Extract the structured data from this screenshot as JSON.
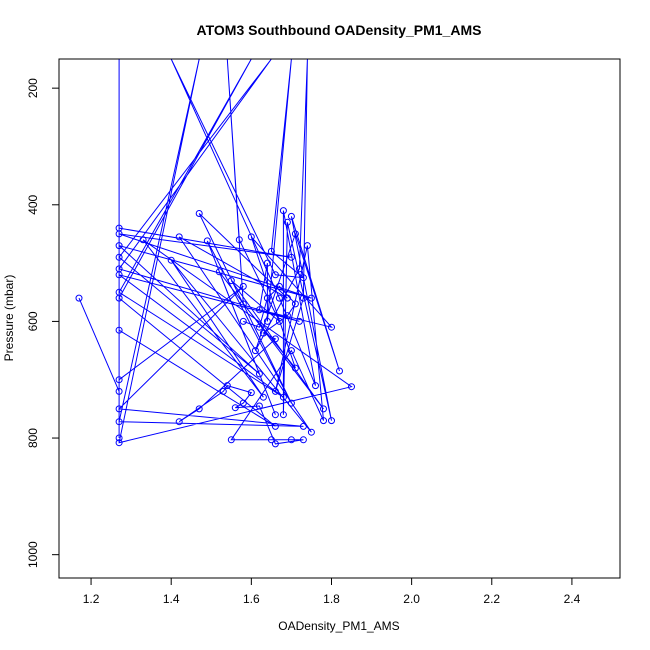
{
  "chart_data": {
    "type": "line",
    "title": "ATOM3 Southbound OADensity_PM1_AMS",
    "xlabel": "OADensity_PM1_AMS",
    "ylabel": "Pressure (mbar)",
    "xlim": [
      1.12,
      2.52
    ],
    "ylim": [
      1040,
      150
    ],
    "y_reversed": true,
    "x_ticks": [
      "1.2",
      "1.4",
      "1.6",
      "1.8",
      "2.0",
      "2.2",
      "2.4"
    ],
    "y_ticks": [
      "200",
      "400",
      "600",
      "800",
      "1000"
    ],
    "series_color": "#0000ff",
    "series": [
      {
        "marker": "open-circle",
        "points": [
          [
            1.17,
            560
          ],
          [
            1.27,
            720
          ],
          [
            1.27,
            150
          ],
          [
            1.27,
            800
          ],
          [
            1.27,
            440
          ],
          [
            1.7,
            490
          ],
          [
            1.27,
            450
          ],
          [
            1.75,
            560
          ],
          [
            1.27,
            470
          ],
          [
            1.62,
            690
          ],
          [
            1.27,
            490
          ],
          [
            1.65,
            150
          ],
          [
            1.27,
            510
          ],
          [
            1.72,
            600
          ],
          [
            1.27,
            520
          ],
          [
            1.68,
            730
          ],
          [
            1.27,
            550
          ],
          [
            1.6,
            150
          ],
          [
            1.27,
            560
          ],
          [
            1.66,
            780
          ],
          [
            1.27,
            615
          ],
          [
            1.27,
            150
          ],
          [
            1.27,
            700
          ],
          [
            1.58,
            540
          ],
          [
            1.27,
            750
          ],
          [
            1.73,
            780
          ],
          [
            1.27,
            772
          ],
          [
            1.47,
            150
          ],
          [
            1.27,
            808
          ],
          [
            1.85,
            712
          ],
          [
            1.33,
            460
          ],
          [
            1.63,
            730
          ],
          [
            1.4,
            495
          ],
          [
            1.75,
            790
          ],
          [
            1.42,
            455
          ],
          [
            1.69,
            560
          ],
          [
            1.47,
            415
          ],
          [
            1.7,
            740
          ],
          [
            1.49,
            462
          ],
          [
            1.66,
            760
          ],
          [
            1.52,
            515
          ],
          [
            1.78,
            750
          ],
          [
            1.55,
            530
          ],
          [
            1.67,
            600
          ],
          [
            1.57,
            460
          ],
          [
            1.54,
            150
          ],
          [
            1.58,
            570
          ],
          [
            1.71,
            680
          ],
          [
            1.6,
            455
          ],
          [
            1.8,
            610
          ],
          [
            1.62,
            580
          ],
          [
            1.64,
            500
          ],
          [
            1.64,
            600
          ],
          [
            1.7,
            150
          ],
          [
            1.65,
            480
          ],
          [
            1.73,
            525
          ],
          [
            1.66,
            520
          ],
          [
            1.4,
            150
          ],
          [
            1.67,
            560
          ],
          [
            1.76,
            710
          ],
          [
            1.68,
            410
          ],
          [
            1.68,
            760
          ],
          [
            1.69,
            430
          ],
          [
            1.8,
            770
          ],
          [
            1.7,
            420
          ],
          [
            1.82,
            685
          ],
          [
            1.71,
            450
          ],
          [
            1.61,
            650
          ],
          [
            1.72,
            510
          ],
          [
            1.74,
            150
          ],
          [
            1.73,
            560
          ],
          [
            1.66,
            720
          ],
          [
            1.74,
            470
          ],
          [
            1.78,
            770
          ],
          [
            1.7,
            650
          ],
          [
            1.55,
            803
          ],
          [
            1.65,
            803
          ],
          [
            1.7,
            803
          ],
          [
            1.73,
            803
          ],
          [
            1.66,
            810
          ],
          [
            1.62,
            745
          ],
          [
            1.56,
            748
          ],
          [
            1.58,
            740
          ],
          [
            1.6,
            722
          ],
          [
            1.54,
            710
          ],
          [
            1.53,
            720
          ],
          [
            1.42,
            772
          ],
          [
            1.47,
            750
          ],
          [
            1.66,
            630
          ],
          [
            1.63,
            620
          ],
          [
            1.69,
            590
          ],
          [
            1.71,
            570
          ],
          [
            1.67,
            540
          ],
          [
            1.64,
            560
          ],
          [
            1.62,
            610
          ],
          [
            1.58,
            600
          ]
        ]
      }
    ]
  }
}
